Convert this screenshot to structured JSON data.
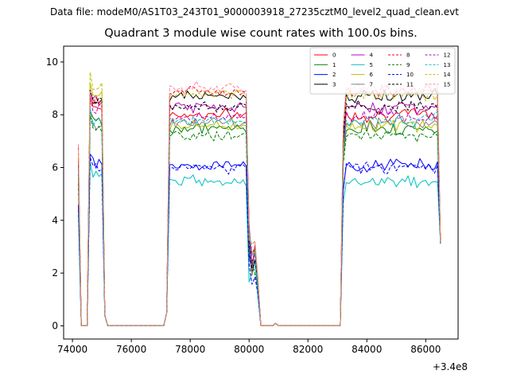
{
  "suptitle": "Data file: modeM0/AS1T03_243T01_9000003918_27235cztM0_level2_quad_clean.evt",
  "chart_data": {
    "type": "line",
    "title": "Quadrant 3 module wise count rates with 100.0s bins.",
    "xlabel": "",
    "ylabel": "",
    "x_offset_label": "+3.4e8",
    "xlim": [
      73700,
      87100
    ],
    "ylim": [
      -0.5,
      10.6
    ],
    "xticks": [
      74000,
      76000,
      78000,
      80000,
      82000,
      84000,
      86000
    ],
    "xtick_labels": [
      "74000",
      "76000",
      "78000",
      "80000",
      "82000",
      "84000",
      "86000"
    ],
    "yticks": [
      0,
      2,
      4,
      6,
      8,
      10
    ],
    "ytick_labels": [
      "0",
      "2",
      "4",
      "6",
      "8",
      "10"
    ],
    "grid": false,
    "legend_position": "top-right",
    "legend_columns": 4,
    "series": [
      {
        "name": "0",
        "color": "#ff0000",
        "dash": false,
        "level": 8.0,
        "burst": 8.3
      },
      {
        "name": "1",
        "color": "#008000",
        "dash": false,
        "level": 7.5,
        "burst": 7.8
      },
      {
        "name": "2",
        "color": "#0000ff",
        "dash": false,
        "level": 6.1,
        "burst": 6.1
      },
      {
        "name": "3",
        "color": "#000000",
        "dash": false,
        "level": 8.7,
        "burst": 8.5
      },
      {
        "name": "4",
        "color": "#bf00bf",
        "dash": false,
        "level": 8.3,
        "burst": 8.6
      },
      {
        "name": "5",
        "color": "#00bfbf",
        "dash": false,
        "level": 5.5,
        "burst": 5.7
      },
      {
        "name": "6",
        "color": "#bfbf00",
        "dash": false,
        "level": 7.6,
        "burst": 8.8
      },
      {
        "name": "7",
        "color": "#808080",
        "dash": false,
        "level": 7.7,
        "burst": 7.6
      },
      {
        "name": "8",
        "color": "#ff0000",
        "dash": true,
        "level": 8.9,
        "burst": 8.6
      },
      {
        "name": "9",
        "color": "#008000",
        "dash": true,
        "level": 7.2,
        "burst": 7.5
      },
      {
        "name": "10",
        "color": "#0000ff",
        "dash": true,
        "level": 6.0,
        "burst": 6.0
      },
      {
        "name": "11",
        "color": "#000000",
        "dash": true,
        "level": 8.3,
        "burst": 8.5
      },
      {
        "name": "12",
        "color": "#bf00bf",
        "dash": true,
        "level": 7.9,
        "burst": 8.3
      },
      {
        "name": "13",
        "color": "#00bfbf",
        "dash": true,
        "level": 7.8,
        "burst": 7.7
      },
      {
        "name": "14",
        "color": "#bfbf00",
        "dash": true,
        "level": 8.8,
        "burst": 9.0
      },
      {
        "name": "15",
        "color": "#ff80a0",
        "dash": true,
        "level": 9.0,
        "burst": 8.4
      }
    ],
    "segments": [
      {
        "start": 74200,
        "end": 75100,
        "kind": "burst"
      },
      {
        "start": 77200,
        "end": 80300,
        "kind": "plateau"
      },
      {
        "start": 83100,
        "end": 86500,
        "kind": "plateau"
      }
    ]
  }
}
